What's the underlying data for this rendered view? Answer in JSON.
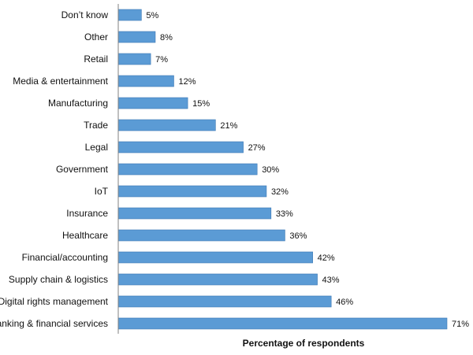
{
  "chart_data": {
    "type": "bar",
    "orientation": "horizontal",
    "title": "",
    "xlabel": "Percentage of respondents",
    "ylabel": "",
    "categories": [
      "Don’t know",
      "Other",
      "Retail",
      "Media & entertainment",
      "Manufacturing",
      "Trade",
      "Legal",
      "Government",
      "IoT",
      "Insurance",
      "Healthcare",
      "Financial/accounting",
      "Supply chain & logistics",
      "Digital rights management",
      "Banking & financial services"
    ],
    "values": [
      5,
      8,
      7,
      12,
      15,
      21,
      27,
      30,
      32,
      33,
      36,
      42,
      43,
      46,
      71
    ],
    "value_labels": [
      "5%",
      "8%",
      "7%",
      "12%",
      "15%",
      "21%",
      "27%",
      "30%",
      "32%",
      "33%",
      "36%",
      "42%",
      "43%",
      "46%",
      "71%"
    ],
    "xlim": [
      0,
      71
    ],
    "grid": false,
    "legend": "none",
    "colors": {
      "bar_fill": "#5b9bd5",
      "bar_stroke": "#3c78b4",
      "axis": "#808080",
      "text": "#111111"
    }
  }
}
